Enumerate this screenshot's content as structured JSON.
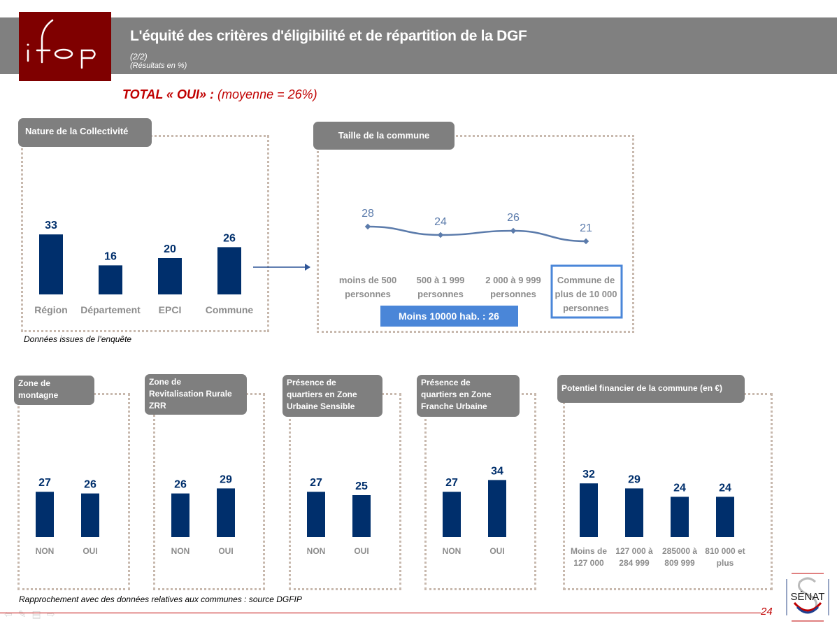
{
  "header": {
    "logo_text": "ifop",
    "title": "L'équité des critères d'éligibilité et de répartition de la DGF",
    "subtitle_part": "(2/2)",
    "subtitle_unit": "(Résultats en %)"
  },
  "total": {
    "label": "TOTAL « OUI» :",
    "mean": "(moyenne = 26%)"
  },
  "notes": {
    "survey": "Données issues de l’enquête",
    "source": "Rapprochement avec des données relatives aux communes : source DGFIP"
  },
  "footer": {
    "page_number": "24",
    "senat_logo_text": "SÉNAT",
    "nav_icons": [
      "arrow-left-icon",
      "pen-icon",
      "menu-icon",
      "arrow-right-icon"
    ]
  },
  "colors": {
    "bar": "#002f6c",
    "line": "#5b7bab",
    "accent_red": "#c00000",
    "tab_grey": "#7f7f7f",
    "highlight_blue": "#4a86d8"
  },
  "chart_data": [
    {
      "id": "nature",
      "type": "bar",
      "title": "Nature de la Collectivité",
      "categories": [
        "Région",
        "Département",
        "EPCI",
        "Commune"
      ],
      "values": [
        33,
        16,
        20,
        26
      ],
      "ylim": [
        0,
        40
      ]
    },
    {
      "id": "taille",
      "type": "line",
      "title": "Taille de la commune",
      "categories": [
        "moins de 500 personnes",
        "500 à 1 999 personnes",
        "2 000 à 9 999 personnes",
        "Commune de plus de 10 000 personnes"
      ],
      "categories_lines": [
        [
          "moins de 500",
          "personnes"
        ],
        [
          "500 à 1 999",
          "personnes"
        ],
        [
          "2 000 à 9 999",
          "personnes"
        ],
        [
          "Commune de",
          "plus de 10 000",
          "personnes"
        ]
      ],
      "values": [
        28,
        24,
        26,
        21
      ],
      "annotation": "Moins 10000 hab. : 26",
      "highlighted_category": "Commune de plus de 10 000 personnes"
    },
    {
      "id": "montagne",
      "type": "bar",
      "title": "Zone de montagne",
      "title_lines": [
        "Zone de",
        "montagne"
      ],
      "categories": [
        "NON",
        "OUI"
      ],
      "values": [
        27,
        26
      ]
    },
    {
      "id": "zrr",
      "type": "bar",
      "title": "Zone de Revitalisation Rurale ZRR",
      "title_lines": [
        "Zone de",
        "Revitalisation Rurale",
        "ZRR"
      ],
      "categories": [
        "NON",
        "OUI"
      ],
      "values": [
        26,
        29
      ]
    },
    {
      "id": "zus",
      "type": "bar",
      "title": "Présence de quartiers en Zone Urbaine Sensible",
      "title_lines": [
        "Présence de",
        "quartiers en Zone",
        "Urbaine Sensible"
      ],
      "categories": [
        "NON",
        "OUI"
      ],
      "values": [
        27,
        25
      ]
    },
    {
      "id": "zfu",
      "type": "bar",
      "title": "Présence de quartiers en Zone Franche Urbaine",
      "title_lines": [
        "Présence de",
        "quartiers en Zone",
        "Franche Urbaine"
      ],
      "categories": [
        "NON",
        "OUI"
      ],
      "values": [
        27,
        34
      ]
    },
    {
      "id": "potentiel",
      "type": "bar",
      "title": "Potentiel financier de la commune (en €)",
      "categories": [
        "Moins de 127 000",
        "127 000 à 284 999",
        "285000 à 809 999",
        "810 000 et plus"
      ],
      "categories_lines": [
        [
          "Moins de",
          "127 000"
        ],
        [
          "127 000 à",
          "284 999"
        ],
        [
          "285000 à",
          "809 999"
        ],
        [
          "810 000 et",
          "plus"
        ]
      ],
      "values": [
        32,
        29,
        24,
        24
      ]
    }
  ]
}
